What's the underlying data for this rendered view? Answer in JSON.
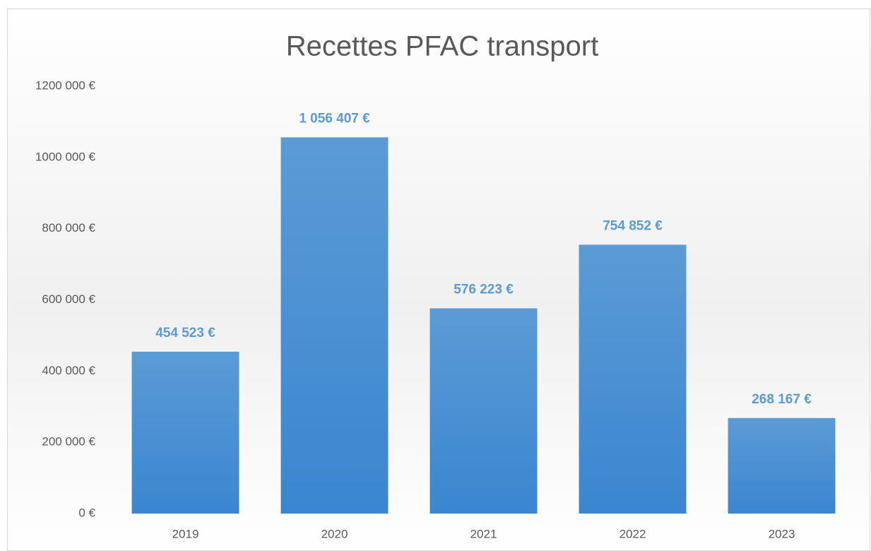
{
  "chart_data": {
    "type": "bar",
    "title": "Recettes PFAC transport",
    "categories": [
      "2019",
      "2020",
      "2021",
      "2022",
      "2023"
    ],
    "values": [
      454523,
      1056407,
      576223,
      754852,
      268167
    ],
    "value_labels": [
      "454 523 €",
      "1 056 407 €",
      "576 223 €",
      "754 852 €",
      "268 167 €"
    ],
    "color": "#4a90d6",
    "ylim": [
      0,
      1200000
    ],
    "yticks": [
      {
        "value": 0,
        "label": "0 €"
      },
      {
        "value": 200000,
        "label": "200 000 €"
      },
      {
        "value": 400000,
        "label": "400 000 €"
      },
      {
        "value": 600000,
        "label": "600 000 €"
      },
      {
        "value": 800000,
        "label": "800 000 €"
      },
      {
        "value": 1000000,
        "label": "1000 000 €"
      },
      {
        "value": 1200000,
        "label": "1200 000 €"
      }
    ],
    "grid": false
  }
}
